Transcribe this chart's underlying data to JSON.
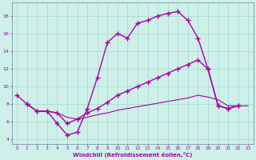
{
  "xlabel": "Windchill (Refroidissement éolien,°C)",
  "bg_color": "#cef0e8",
  "line_color": "#aa00aa",
  "grid_color": "#a8ddd4",
  "xlim": [
    -0.5,
    23.5
  ],
  "ylim": [
    3.5,
    19.5
  ],
  "xticks": [
    0,
    1,
    2,
    3,
    4,
    5,
    6,
    7,
    8,
    9,
    10,
    11,
    12,
    13,
    14,
    15,
    16,
    17,
    18,
    19,
    20,
    21,
    22,
    23
  ],
  "yticks": [
    4,
    6,
    8,
    10,
    12,
    14,
    16,
    18
  ],
  "line1_x": [
    0,
    1,
    2,
    3,
    4,
    5,
    6,
    7,
    8,
    9,
    10,
    11,
    12,
    13,
    14,
    15,
    16,
    17,
    18,
    19,
    20,
    21,
    22
  ],
  "line1_y": [
    9.0,
    8.0,
    7.2,
    7.2,
    5.8,
    4.5,
    4.8,
    7.5,
    11.0,
    15.0,
    16.0,
    15.5,
    17.2,
    17.5,
    18.0,
    18.3,
    18.5,
    17.5,
    15.5,
    12.0,
    7.8,
    7.5,
    7.8
  ],
  "line2_x": [
    1,
    2,
    3,
    4,
    5,
    6,
    7,
    8,
    9,
    10,
    11,
    12,
    13,
    14,
    15,
    16,
    17,
    18,
    19,
    20,
    21,
    22
  ],
  "line2_y": [
    8.0,
    7.2,
    7.2,
    7.0,
    5.8,
    6.3,
    7.0,
    7.5,
    8.2,
    9.0,
    9.5,
    10.0,
    10.5,
    11.0,
    11.5,
    12.0,
    12.5,
    13.0,
    12.0,
    7.8,
    7.5,
    7.8
  ],
  "line3_x": [
    2,
    3,
    4,
    5,
    6,
    7,
    8,
    9,
    10,
    11,
    12,
    13,
    14,
    15,
    16,
    17,
    18,
    19,
    20,
    21,
    22,
    23
  ],
  "line3_y": [
    7.2,
    7.2,
    7.0,
    6.5,
    6.3,
    6.5,
    6.8,
    7.0,
    7.3,
    7.5,
    7.7,
    7.9,
    8.1,
    8.3,
    8.5,
    8.7,
    9.0,
    8.8,
    8.5,
    7.8,
    7.8,
    7.8
  ]
}
